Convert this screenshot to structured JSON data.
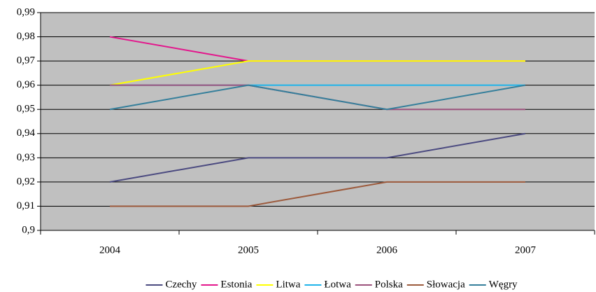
{
  "chart_data": {
    "type": "line",
    "categories": [
      "2004",
      "2005",
      "2006",
      "2007"
    ],
    "ylim": [
      0.9,
      0.99
    ],
    "yticks": [
      {
        "value": 0.9,
        "label": "0,9"
      },
      {
        "value": 0.91,
        "label": "0,91"
      },
      {
        "value": 0.92,
        "label": "0,92"
      },
      {
        "value": 0.93,
        "label": "0,93"
      },
      {
        "value": 0.94,
        "label": "0,94"
      },
      {
        "value": 0.95,
        "label": "0,95"
      },
      {
        "value": 0.96,
        "label": "0,96"
      },
      {
        "value": 0.97,
        "label": "0,97"
      },
      {
        "value": 0.98,
        "label": "0,98"
      },
      {
        "value": 0.99,
        "label": "0,99"
      }
    ],
    "grid": true,
    "legend": "bottom",
    "series": [
      {
        "name": "Czechy",
        "color": "#4b4a80",
        "values": [
          0.92,
          0.93,
          0.93,
          0.94
        ]
      },
      {
        "name": "Estonia",
        "color": "#e3168c",
        "values": [
          0.98,
          0.97,
          0.97,
          0.97
        ]
      },
      {
        "name": "Litwa",
        "color": "#ffff00",
        "values": [
          0.96,
          0.97,
          0.97,
          0.97
        ]
      },
      {
        "name": "Łotwa",
        "color": "#1fb4ea",
        "values": [
          0.96,
          0.96,
          0.96,
          0.96
        ]
      },
      {
        "name": "Polska",
        "color": "#9c527c",
        "values": [
          0.96,
          0.96,
          0.95,
          0.95
        ]
      },
      {
        "name": "Słowacja",
        "color": "#9c5a3c",
        "values": [
          0.91,
          0.91,
          0.92,
          0.92
        ]
      },
      {
        "name": "Węgry",
        "color": "#357f9b",
        "values": [
          0.95,
          0.96,
          0.95,
          0.96
        ]
      }
    ]
  }
}
